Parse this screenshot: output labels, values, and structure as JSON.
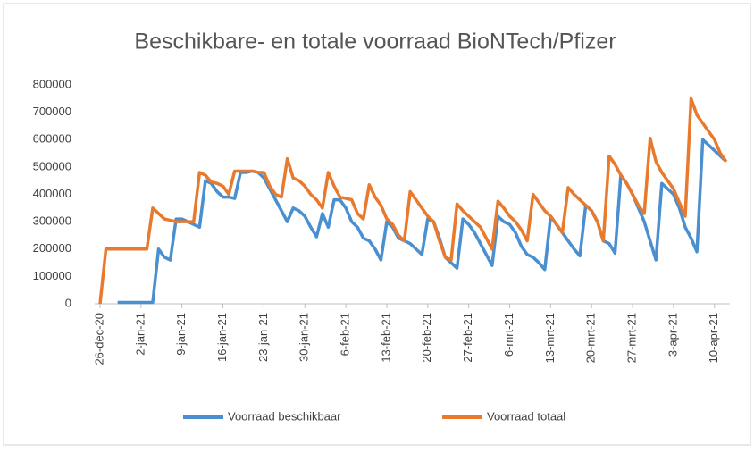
{
  "chart_data": {
    "type": "line",
    "title": "Beschikbare- en totale voorraad BioNTech/Pfizer",
    "categories": [
      "26-dec-20",
      null,
      null,
      null,
      null,
      null,
      null,
      "2-jan-21",
      null,
      null,
      null,
      null,
      null,
      null,
      "9-jan-21",
      null,
      null,
      null,
      null,
      null,
      null,
      "16-jan-21",
      null,
      null,
      null,
      null,
      null,
      null,
      "23-jan-21",
      null,
      null,
      null,
      null,
      null,
      null,
      "30-jan-21",
      null,
      null,
      null,
      null,
      null,
      null,
      "6-feb-21",
      null,
      null,
      null,
      null,
      null,
      null,
      "13-feb-21",
      null,
      null,
      null,
      null,
      null,
      null,
      "20-feb-21",
      null,
      null,
      null,
      null,
      null,
      null,
      "27-feb-21",
      null,
      null,
      null,
      null,
      null,
      null,
      "6-mrt-21",
      null,
      null,
      null,
      null,
      null,
      null,
      "13-mrt-21",
      null,
      null,
      null,
      null,
      null,
      null,
      "20-mrt-21",
      null,
      null,
      null,
      null,
      null,
      null,
      "27-mrt-21",
      null,
      null,
      null,
      null,
      null,
      null,
      "3-apr-21",
      null,
      null,
      null,
      null,
      null,
      null,
      "10-apr-21",
      null,
      null
    ],
    "series": [
      {
        "name": "Voorraad beschikbaar",
        "color": "#4a8fd0",
        "values": [
          null,
          null,
          null,
          5000,
          5000,
          5000,
          5000,
          5000,
          5000,
          5000,
          200000,
          170000,
          160000,
          310000,
          310000,
          300000,
          290000,
          280000,
          450000,
          440000,
          410000,
          390000,
          390000,
          385000,
          480000,
          480000,
          485000,
          480000,
          460000,
          420000,
          380000,
          340000,
          300000,
          350000,
          340000,
          320000,
          280000,
          245000,
          330000,
          280000,
          380000,
          380000,
          350000,
          300000,
          280000,
          240000,
          230000,
          200000,
          160000,
          300000,
          280000,
          240000,
          230000,
          220000,
          200000,
          180000,
          310000,
          300000,
          240000,
          170000,
          150000,
          130000,
          310000,
          290000,
          260000,
          220000,
          180000,
          140000,
          320000,
          300000,
          290000,
          260000,
          210000,
          180000,
          170000,
          150000,
          125000,
          320000,
          290000,
          260000,
          230000,
          200000,
          175000,
          360000,
          340000,
          300000,
          230000,
          220000,
          185000,
          470000,
          440000,
          400000,
          350000,
          300000,
          230000,
          160000,
          440000,
          420000,
          400000,
          350000,
          280000,
          240000,
          190000,
          600000,
          580000,
          560000,
          540000,
          520000
        ]
      },
      {
        "name": "Voorraad totaal",
        "color": "#e87a2e",
        "values": [
          0,
          200000,
          200000,
          200000,
          200000,
          200000,
          200000,
          200000,
          200000,
          350000,
          330000,
          310000,
          305000,
          300000,
          300000,
          300000,
          300000,
          480000,
          470000,
          445000,
          440000,
          430000,
          400000,
          485000,
          485000,
          485000,
          485000,
          480000,
          480000,
          430000,
          400000,
          390000,
          530000,
          460000,
          450000,
          430000,
          400000,
          380000,
          350000,
          480000,
          430000,
          390000,
          385000,
          380000,
          330000,
          310000,
          435000,
          390000,
          360000,
          310000,
          290000,
          250000,
          230000,
          410000,
          380000,
          350000,
          320000,
          300000,
          230000,
          170000,
          160000,
          365000,
          340000,
          320000,
          300000,
          280000,
          240000,
          200000,
          375000,
          350000,
          320000,
          300000,
          270000,
          230000,
          400000,
          370000,
          340000,
          320000,
          290000,
          260000,
          425000,
          400000,
          380000,
          360000,
          340000,
          300000,
          230000,
          540000,
          510000,
          470000,
          440000,
          400000,
          360000,
          330000,
          605000,
          520000,
          480000,
          450000,
          420000,
          370000,
          320000,
          750000,
          690000,
          660000,
          630000,
          600000,
          550000,
          520000
        ]
      }
    ],
    "ylim": [
      0,
      800000
    ],
    "yticks": [
      0,
      100000,
      200000,
      300000,
      400000,
      500000,
      600000,
      700000,
      800000
    ],
    "grid": false
  }
}
